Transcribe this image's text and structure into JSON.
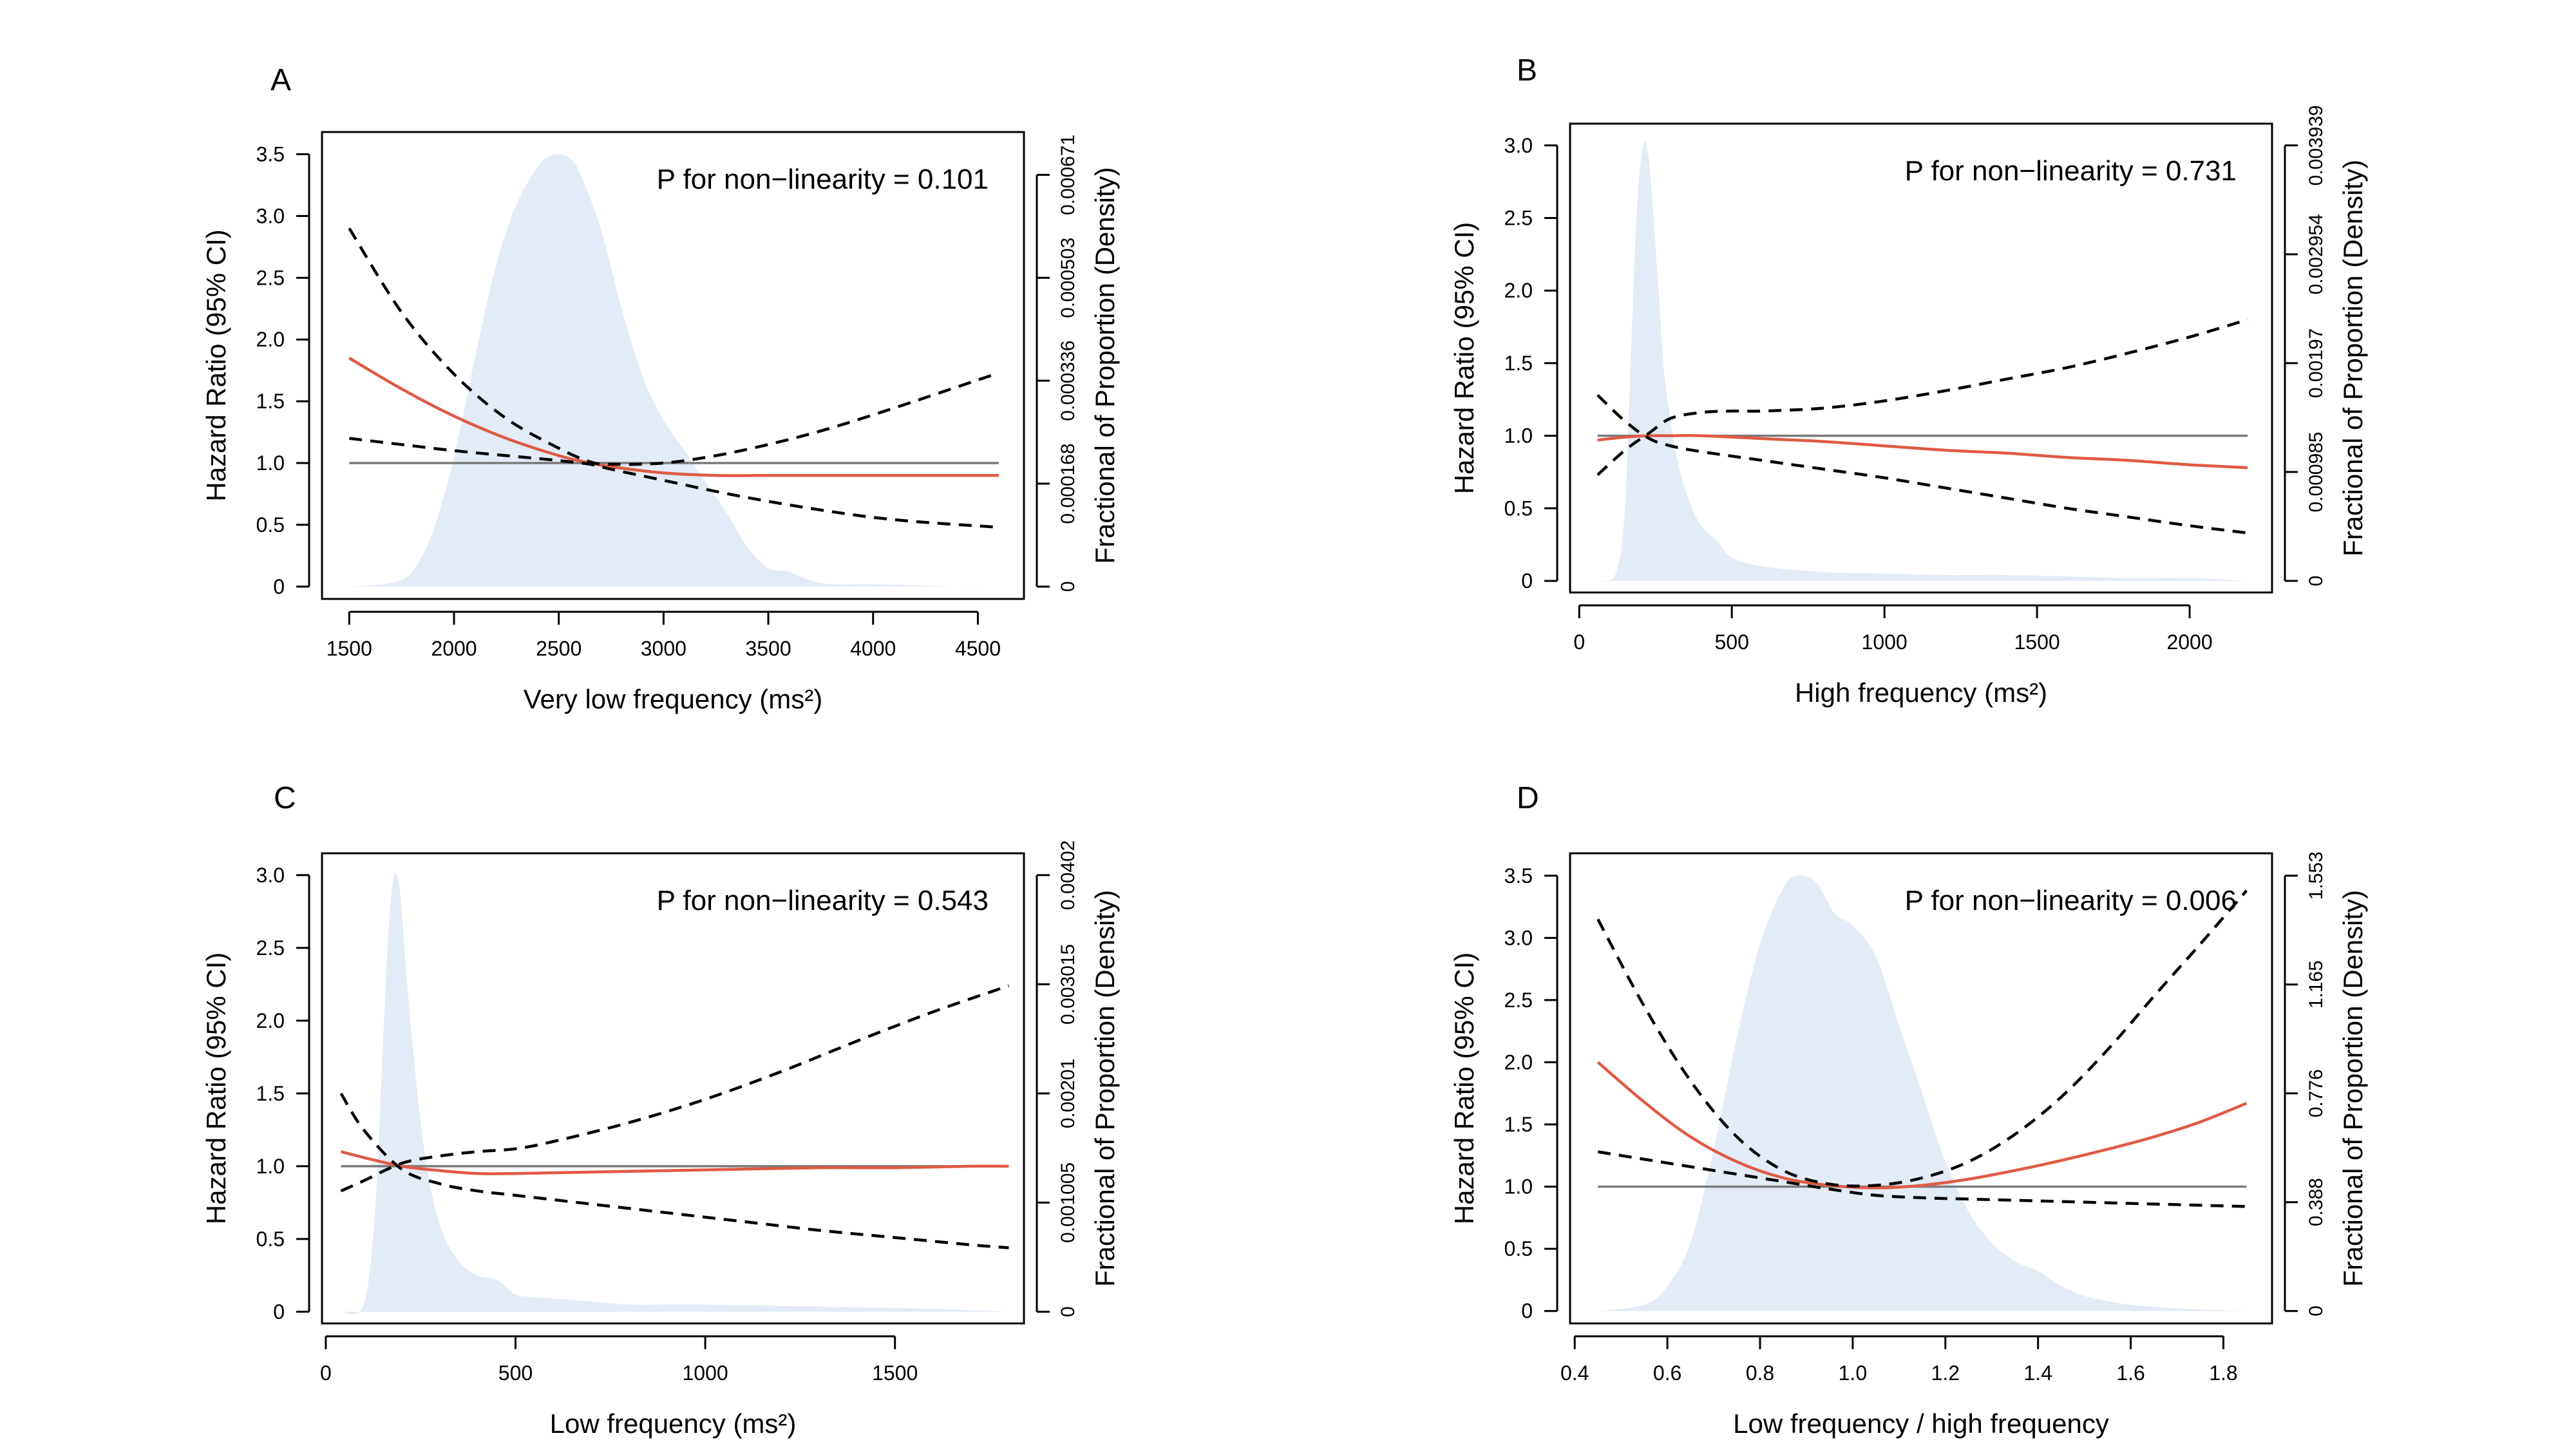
{
  "colors": {
    "density_fill": "#e3ebf6",
    "spline": "#e05a44",
    "ci": "#000000",
    "reference": "#7a7a7a",
    "frame": "#000000"
  },
  "chart_data": [
    {
      "panel": "A",
      "type": "line",
      "xlabel": "Very low frequency (ms²)",
      "ylabel_left": "Hazard Ratio (95% CI)",
      "ylabel_right": "Fractional of Proportion (Density)",
      "annotation": "P for non−linearity = 0.101",
      "xlim": [
        1370,
        4720
      ],
      "ylim": [
        -0.1,
        3.68
      ],
      "xticks": [
        1500,
        2000,
        2500,
        3000,
        3500,
        4000,
        4500
      ],
      "xtick_labels": [
        "1500",
        "2000",
        "2500",
        "3000",
        "3500",
        "4000",
        "4500"
      ],
      "yticks": [
        0,
        0.5,
        1.0,
        1.5,
        2.0,
        2.5,
        3.0,
        3.5
      ],
      "ytick_labels": [
        "0",
        "0.5",
        "1.0",
        "1.5",
        "2.0",
        "2.5",
        "3.0",
        "3.5"
      ],
      "right_ticks": [
        0,
        0.8333,
        1.6667,
        2.5,
        3.3333,
        4.1667
      ],
      "right_tick_labels": [
        "0",
        "0.000168",
        "0.000336",
        "0.000503",
        "0.000671",
        ""
      ],
      "right_label_display": [
        "0",
        "0.000168",
        "0.000336",
        "0.000503",
        "0.000671"
      ],
      "reference": 1.0,
      "series": [
        {
          "name": "Hazard ratio",
          "x": [
            1500,
            1750,
            2000,
            2250,
            2500,
            2650,
            2750,
            3000,
            3250,
            3500,
            3750,
            4000,
            4250,
            4600
          ],
          "y": [
            1.85,
            1.6,
            1.38,
            1.2,
            1.06,
            1.0,
            0.97,
            0.92,
            0.9,
            0.9,
            0.9,
            0.9,
            0.9,
            0.9
          ]
        },
        {
          "name": "Upper 95% CI",
          "x": [
            1500,
            1750,
            2000,
            2250,
            2500,
            2650,
            2750,
            3000,
            3250,
            3500,
            3750,
            4000,
            4250,
            4600
          ],
          "y": [
            2.9,
            2.22,
            1.72,
            1.36,
            1.12,
            1.01,
            0.99,
            1.0,
            1.06,
            1.15,
            1.26,
            1.39,
            1.53,
            1.73
          ]
        },
        {
          "name": "Lower 95% CI",
          "x": [
            1500,
            1750,
            2000,
            2250,
            2500,
            2650,
            2750,
            3000,
            3250,
            3500,
            3750,
            4000,
            4250,
            4600
          ],
          "y": [
            1.2,
            1.15,
            1.1,
            1.06,
            1.02,
            0.99,
            0.95,
            0.86,
            0.77,
            0.69,
            0.62,
            0.56,
            0.52,
            0.48
          ]
        }
      ],
      "density": {
        "x": [
          1500,
          1700,
          1800,
          1900,
          2000,
          2100,
          2200,
          2300,
          2400,
          2450,
          2500,
          2550,
          2600,
          2700,
          2800,
          2900,
          3000,
          3100,
          3200,
          3300,
          3400,
          3500,
          3600,
          3700,
          3800,
          4000,
          4200,
          4400,
          4600
        ],
        "y": [
          0,
          0.03,
          0.12,
          0.45,
          1.05,
          1.85,
          2.6,
          3.1,
          3.4,
          3.48,
          3.5,
          3.47,
          3.35,
          2.9,
          2.25,
          1.7,
          1.35,
          1.1,
          0.85,
          0.6,
          0.32,
          0.15,
          0.12,
          0.05,
          0.02,
          0.02,
          0.01,
          0.0,
          0.0
        ]
      }
    },
    {
      "panel": "B",
      "type": "line",
      "xlabel": "High frequency (ms²)",
      "ylabel_left": "Hazard Ratio (95% CI)",
      "ylabel_right": "Fractional of Proportion (Density)",
      "annotation": "P for non−linearity = 0.731",
      "xlim": [
        -30,
        2270
      ],
      "ylim": [
        -0.08,
        3.15
      ],
      "xticks": [
        0,
        500,
        1000,
        1500,
        2000
      ],
      "xtick_labels": [
        "0",
        "500",
        "1000",
        "1500",
        "2000"
      ],
      "yticks": [
        0,
        0.5,
        1.0,
        1.5,
        2.0,
        2.5,
        3.0
      ],
      "ytick_labels": [
        "0",
        "0.5",
        "1.0",
        "1.5",
        "2.0",
        "2.5",
        "3.0"
      ],
      "right_ticks": [
        0,
        0.75,
        1.5,
        2.25,
        3.0
      ],
      "right_label_display": [
        "0",
        "0.000985",
        "0.00197",
        "0.002954",
        "0.003939"
      ],
      "reference": 1.0,
      "series": [
        {
          "name": "Hazard ratio",
          "x": [
            60,
            150,
            230,
            300,
            400,
            600,
            800,
            1000,
            1200,
            1400,
            1600,
            1800,
            2000,
            2190
          ],
          "y": [
            0.97,
            0.99,
            1.0,
            1.0,
            1.0,
            0.98,
            0.96,
            0.93,
            0.9,
            0.88,
            0.85,
            0.83,
            0.8,
            0.78
          ]
        },
        {
          "name": "Upper 95% CI",
          "x": [
            60,
            150,
            230,
            300,
            400,
            500,
            600,
            800,
            1000,
            1200,
            1400,
            1600,
            1800,
            2000,
            2190
          ],
          "y": [
            0.73,
            0.9,
            1.02,
            1.12,
            1.16,
            1.17,
            1.17,
            1.19,
            1.24,
            1.31,
            1.39,
            1.47,
            1.57,
            1.68,
            1.8
          ]
        },
        {
          "name": "Lower 95% CI",
          "x": [
            60,
            150,
            230,
            300,
            400,
            600,
            800,
            1000,
            1200,
            1400,
            1600,
            1800,
            2000,
            2190
          ],
          "y": [
            1.28,
            1.1,
            0.98,
            0.93,
            0.89,
            0.83,
            0.77,
            0.71,
            0.64,
            0.57,
            0.5,
            0.44,
            0.38,
            0.33
          ]
        }
      ],
      "density": {
        "x": [
          60,
          120,
          150,
          170,
          190,
          210,
          225,
          240,
          260,
          280,
          320,
          360,
          400,
          450,
          500,
          600,
          800,
          1000,
          1200,
          1400,
          1600,
          1800,
          2000,
          2190
        ],
        "y": [
          0,
          0.05,
          0.5,
          1.6,
          2.6,
          3.0,
          2.95,
          2.6,
          2.0,
          1.4,
          0.85,
          0.55,
          0.38,
          0.28,
          0.16,
          0.1,
          0.06,
          0.05,
          0.04,
          0.04,
          0.03,
          0.02,
          0.02,
          0.0
        ]
      }
    },
    {
      "panel": "C",
      "type": "line",
      "xlabel": "Low frequency (ms²)",
      "ylabel_left": "Hazard Ratio (95% CI)",
      "ylabel_right": "Fractional of Proportion (Density)",
      "annotation": "P for non−linearity = 0.543",
      "xlim": [
        -10,
        1840
      ],
      "ylim": [
        -0.08,
        3.15
      ],
      "xticks": [
        0,
        500,
        1000,
        1500
      ],
      "xtick_labels": [
        "0",
        "500",
        "1000",
        "1500"
      ],
      "yticks": [
        0,
        0.5,
        1.0,
        1.5,
        2.0,
        2.5,
        3.0
      ],
      "ytick_labels": [
        "0",
        "0.5",
        "1.0",
        "1.5",
        "2.0",
        "2.5",
        "3.0"
      ],
      "right_ticks": [
        0,
        0.75,
        1.5,
        2.25,
        3.0
      ],
      "right_label_display": [
        "0",
        "0.001005",
        "0.00201",
        "0.003015",
        "0.00402"
      ],
      "reference": 1.0,
      "series": [
        {
          "name": "Hazard ratio",
          "x": [
            40,
            100,
            200,
            300,
            400,
            500,
            700,
            900,
            1100,
            1300,
            1500,
            1700,
            1800
          ],
          "y": [
            1.1,
            1.06,
            1.0,
            0.97,
            0.95,
            0.95,
            0.96,
            0.97,
            0.98,
            0.99,
            0.99,
            1.0,
            1.0
          ]
        },
        {
          "name": "Upper 95% CI",
          "x": [
            40,
            100,
            200,
            300,
            400,
            500,
            600,
            800,
            1000,
            1200,
            1400,
            1600,
            1800
          ],
          "y": [
            0.83,
            0.9,
            1.02,
            1.07,
            1.1,
            1.12,
            1.17,
            1.3,
            1.46,
            1.65,
            1.86,
            2.06,
            2.24
          ]
        },
        {
          "name": "Lower 95% CI",
          "x": [
            40,
            100,
            200,
            300,
            400,
            500,
            700,
            900,
            1100,
            1300,
            1500,
            1700,
            1800
          ],
          "y": [
            1.5,
            1.25,
            0.98,
            0.88,
            0.83,
            0.8,
            0.74,
            0.68,
            0.62,
            0.56,
            0.51,
            0.46,
            0.44
          ]
        }
      ],
      "density": {
        "x": [
          40,
          100,
          130,
          150,
          165,
          180,
          195,
          210,
          230,
          260,
          300,
          350,
          400,
          450,
          500,
          550,
          600,
          700,
          800,
          900,
          1000,
          1200,
          1400,
          1600,
          1800
        ],
        "y": [
          0,
          0.05,
          0.7,
          1.8,
          2.6,
          3.0,
          2.9,
          2.4,
          1.8,
          1.1,
          0.6,
          0.35,
          0.25,
          0.22,
          0.12,
          0.1,
          0.09,
          0.07,
          0.05,
          0.05,
          0.05,
          0.04,
          0.03,
          0.02,
          0.0
        ]
      }
    },
    {
      "panel": "D",
      "type": "line",
      "xlabel": "Low frequency / high frequency",
      "ylabel_left": "Hazard Ratio (95% CI)",
      "ylabel_right": "Fractional of Proportion (Density)",
      "annotation": "P for non−linearity = 0.006",
      "xlim": [
        0.39,
        1.905
      ],
      "ylim": [
        -0.1,
        3.68
      ],
      "xticks": [
        0.4,
        0.6,
        0.8,
        1.0,
        1.2,
        1.4,
        1.6,
        1.8
      ],
      "xtick_labels": [
        "0.4",
        "0.6",
        "0.8",
        "1.0",
        "1.2",
        "1.4",
        "1.6",
        "1.8"
      ],
      "yticks": [
        0,
        0.5,
        1.0,
        1.5,
        2.0,
        2.5,
        3.0,
        3.5
      ],
      "ytick_labels": [
        "0",
        "0.5",
        "1.0",
        "1.5",
        "2.0",
        "2.5",
        "3.0",
        "3.5"
      ],
      "right_ticks": [
        0,
        0.875,
        1.75,
        2.625,
        3.5
      ],
      "right_label_display": [
        "0",
        "0.388",
        "0.776",
        "1.165",
        "1.553"
      ],
      "reference": 1.0,
      "series": [
        {
          "name": "Hazard ratio",
          "x": [
            0.45,
            0.55,
            0.65,
            0.75,
            0.85,
            0.95,
            1.05,
            1.15,
            1.25,
            1.35,
            1.45,
            1.55,
            1.65,
            1.75,
            1.85
          ],
          "y": [
            2.0,
            1.68,
            1.4,
            1.2,
            1.07,
            1.01,
            0.99,
            1.01,
            1.06,
            1.13,
            1.21,
            1.3,
            1.4,
            1.52,
            1.67
          ]
        },
        {
          "name": "Upper 95% CI",
          "x": [
            0.45,
            0.55,
            0.65,
            0.75,
            0.85,
            0.95,
            1.05,
            1.15,
            1.25,
            1.35,
            1.45,
            1.55,
            1.65,
            1.75,
            1.85
          ],
          "y": [
            3.15,
            2.45,
            1.85,
            1.4,
            1.13,
            1.02,
            1.01,
            1.07,
            1.2,
            1.42,
            1.72,
            2.1,
            2.53,
            2.95,
            3.38
          ]
        },
        {
          "name": "Lower 95% CI",
          "x": [
            0.45,
            0.55,
            0.65,
            0.75,
            0.85,
            0.95,
            1.05,
            1.15,
            1.25,
            1.35,
            1.45,
            1.55,
            1.65,
            1.75,
            1.85
          ],
          "y": [
            1.28,
            1.22,
            1.16,
            1.1,
            1.04,
            0.98,
            0.93,
            0.91,
            0.9,
            0.89,
            0.88,
            0.87,
            0.86,
            0.85,
            0.84
          ]
        }
      ],
      "density": {
        "x": [
          0.45,
          0.55,
          0.6,
          0.65,
          0.7,
          0.75,
          0.8,
          0.85,
          0.88,
          0.92,
          0.96,
          1.0,
          1.05,
          1.1,
          1.15,
          1.2,
          1.25,
          1.3,
          1.35,
          1.4,
          1.45,
          1.5,
          1.55,
          1.6,
          1.7,
          1.85
        ],
        "y": [
          0,
          0.05,
          0.2,
          0.55,
          1.3,
          2.2,
          2.95,
          3.4,
          3.5,
          3.45,
          3.2,
          3.1,
          2.85,
          2.3,
          1.75,
          1.2,
          0.8,
          0.55,
          0.4,
          0.32,
          0.2,
          0.12,
          0.08,
          0.05,
          0.02,
          0.0
        ]
      }
    }
  ]
}
